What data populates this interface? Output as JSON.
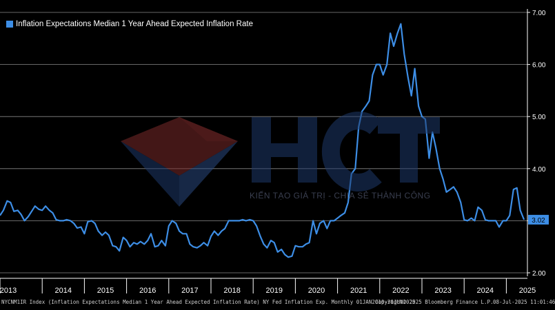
{
  "legend": {
    "label": "Inflation Expectations Median 1 Year Ahead Expected Inflation Rate",
    "color": "#3d8ee6"
  },
  "watermark": {
    "text": "KIẾN TẠO GIÁ TRỊ - CHIA SẺ THÀNH CÔNG",
    "logo_text": "HCT"
  },
  "footer": {
    "left": "NYCNM1IR Index (Inflation Expectations Median 1 Year Ahead Expected Inflation Rate) NY Fed Inflation Exp.  Monthly 01JAN2010-30JUN2025",
    "center": "Copyright© 2025 Bloomberg Finance L.P.",
    "right": "08-Jul-2025 11:01:46"
  },
  "last_value_label": "3.02",
  "colors": {
    "line": "#3d8ee6",
    "grid": "#8a8a8a",
    "background": "#000000",
    "last_value_bg": "#3d8ee6"
  },
  "chart_data": {
    "type": "line",
    "title": "",
    "xlabel": "",
    "ylabel": "",
    "ylim": [
      2.0,
      7.0
    ],
    "xlim": [
      2013.0,
      2025.5
    ],
    "grid": true,
    "legend_position": "top-left",
    "y_ticks": [
      "2.00",
      "3.00",
      "4.00",
      "5.00",
      "6.00",
      "7.00"
    ],
    "x_ticks": [
      "2013",
      "2014",
      "2015",
      "2016",
      "2017",
      "2018",
      "2019",
      "2020",
      "2021",
      "2022",
      "2023",
      "2024",
      "2025"
    ],
    "series": [
      {
        "name": "Inflation Expectations Median 1 Year Ahead Expected Inflation Rate",
        "points": [
          [
            2013.0,
            3.1
          ],
          [
            2013.08,
            3.2
          ],
          [
            2013.17,
            3.38
          ],
          [
            2013.25,
            3.35
          ],
          [
            2013.33,
            3.18
          ],
          [
            2013.42,
            3.2
          ],
          [
            2013.5,
            3.12
          ],
          [
            2013.58,
            3.0
          ],
          [
            2013.67,
            3.08
          ],
          [
            2013.75,
            3.18
          ],
          [
            2013.83,
            3.28
          ],
          [
            2013.92,
            3.22
          ],
          [
            2014.0,
            3.2
          ],
          [
            2014.08,
            3.28
          ],
          [
            2014.17,
            3.2
          ],
          [
            2014.25,
            3.15
          ],
          [
            2014.33,
            3.02
          ],
          [
            2014.42,
            3.0
          ],
          [
            2014.5,
            3.0
          ],
          [
            2014.58,
            3.02
          ],
          [
            2014.67,
            3.0
          ],
          [
            2014.75,
            2.95
          ],
          [
            2014.83,
            2.86
          ],
          [
            2014.92,
            2.88
          ],
          [
            2015.0,
            2.75
          ],
          [
            2015.08,
            2.98
          ],
          [
            2015.17,
            3.0
          ],
          [
            2015.25,
            2.95
          ],
          [
            2015.33,
            2.8
          ],
          [
            2015.42,
            2.72
          ],
          [
            2015.5,
            2.78
          ],
          [
            2015.58,
            2.72
          ],
          [
            2015.67,
            2.52
          ],
          [
            2015.75,
            2.5
          ],
          [
            2015.83,
            2.42
          ],
          [
            2015.92,
            2.68
          ],
          [
            2016.0,
            2.62
          ],
          [
            2016.08,
            2.5
          ],
          [
            2016.17,
            2.58
          ],
          [
            2016.25,
            2.55
          ],
          [
            2016.33,
            2.6
          ],
          [
            2016.42,
            2.55
          ],
          [
            2016.5,
            2.62
          ],
          [
            2016.58,
            2.75
          ],
          [
            2016.67,
            2.5
          ],
          [
            2016.75,
            2.52
          ],
          [
            2016.83,
            2.62
          ],
          [
            2016.92,
            2.52
          ],
          [
            2017.0,
            2.9
          ],
          [
            2017.08,
            3.0
          ],
          [
            2017.17,
            2.95
          ],
          [
            2017.25,
            2.8
          ],
          [
            2017.33,
            2.75
          ],
          [
            2017.42,
            2.75
          ],
          [
            2017.5,
            2.55
          ],
          [
            2017.58,
            2.5
          ],
          [
            2017.67,
            2.48
          ],
          [
            2017.75,
            2.52
          ],
          [
            2017.83,
            2.58
          ],
          [
            2017.92,
            2.52
          ],
          [
            2018.0,
            2.7
          ],
          [
            2018.08,
            2.8
          ],
          [
            2018.17,
            2.72
          ],
          [
            2018.25,
            2.8
          ],
          [
            2018.33,
            2.85
          ],
          [
            2018.42,
            3.0
          ],
          [
            2018.5,
            3.0
          ],
          [
            2018.58,
            3.0
          ],
          [
            2018.67,
            3.0
          ],
          [
            2018.75,
            3.02
          ],
          [
            2018.83,
            3.0
          ],
          [
            2018.92,
            3.02
          ],
          [
            2019.0,
            3.0
          ],
          [
            2019.08,
            2.9
          ],
          [
            2019.17,
            2.7
          ],
          [
            2019.25,
            2.55
          ],
          [
            2019.33,
            2.48
          ],
          [
            2019.42,
            2.62
          ],
          [
            2019.5,
            2.58
          ],
          [
            2019.58,
            2.4
          ],
          [
            2019.67,
            2.45
          ],
          [
            2019.75,
            2.35
          ],
          [
            2019.83,
            2.3
          ],
          [
            2019.92,
            2.32
          ],
          [
            2020.0,
            2.52
          ],
          [
            2020.08,
            2.5
          ],
          [
            2020.17,
            2.5
          ],
          [
            2020.25,
            2.55
          ],
          [
            2020.33,
            2.58
          ],
          [
            2020.42,
            3.0
          ],
          [
            2020.5,
            2.75
          ],
          [
            2020.58,
            2.95
          ],
          [
            2020.67,
            3.0
          ],
          [
            2020.75,
            2.85
          ],
          [
            2020.83,
            3.0
          ],
          [
            2020.92,
            3.0
          ],
          [
            2021.0,
            3.05
          ],
          [
            2021.08,
            3.1
          ],
          [
            2021.17,
            3.15
          ],
          [
            2021.25,
            3.35
          ],
          [
            2021.33,
            3.9
          ],
          [
            2021.42,
            4.0
          ],
          [
            2021.5,
            4.8
          ],
          [
            2021.58,
            5.1
          ],
          [
            2021.67,
            5.2
          ],
          [
            2021.75,
            5.3
          ],
          [
            2021.83,
            5.8
          ],
          [
            2021.92,
            6.0
          ],
          [
            2022.0,
            6.0
          ],
          [
            2022.08,
            5.8
          ],
          [
            2022.17,
            6.0
          ],
          [
            2022.25,
            6.6
          ],
          [
            2022.33,
            6.35
          ],
          [
            2022.42,
            6.6
          ],
          [
            2022.5,
            6.78
          ],
          [
            2022.58,
            6.2
          ],
          [
            2022.67,
            5.75
          ],
          [
            2022.75,
            5.4
          ],
          [
            2022.83,
            5.92
          ],
          [
            2022.92,
            5.2
          ],
          [
            2023.0,
            5.0
          ],
          [
            2023.08,
            4.95
          ],
          [
            2023.17,
            4.2
          ],
          [
            2023.25,
            4.7
          ],
          [
            2023.33,
            4.4
          ],
          [
            2023.42,
            4.0
          ],
          [
            2023.5,
            3.8
          ],
          [
            2023.58,
            3.55
          ],
          [
            2023.67,
            3.6
          ],
          [
            2023.75,
            3.65
          ],
          [
            2023.83,
            3.55
          ],
          [
            2023.92,
            3.35
          ],
          [
            2024.0,
            3.02
          ],
          [
            2024.08,
            3.0
          ],
          [
            2024.17,
            3.05
          ],
          [
            2024.25,
            3.0
          ],
          [
            2024.33,
            3.26
          ],
          [
            2024.42,
            3.2
          ],
          [
            2024.5,
            3.02
          ],
          [
            2024.58,
            3.0
          ],
          [
            2024.67,
            3.0
          ],
          [
            2024.75,
            3.0
          ],
          [
            2024.83,
            2.88
          ],
          [
            2024.92,
            3.0
          ],
          [
            2025.0,
            3.0
          ],
          [
            2025.08,
            3.1
          ],
          [
            2025.17,
            3.6
          ],
          [
            2025.25,
            3.63
          ],
          [
            2025.33,
            3.2
          ],
          [
            2025.42,
            3.02
          ]
        ]
      }
    ]
  }
}
